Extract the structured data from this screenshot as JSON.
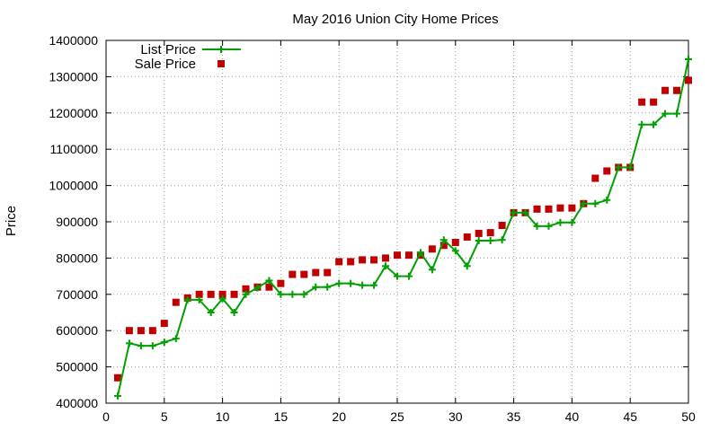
{
  "chart_data": {
    "type": "line",
    "title": "May 2016 Union City Home Prices",
    "xlabel": "",
    "ylabel": "Price",
    "xlim": [
      0,
      50
    ],
    "ylim": [
      400000,
      1400000
    ],
    "xticks": [
      0,
      5,
      10,
      15,
      20,
      25,
      30,
      35,
      40,
      45,
      50
    ],
    "yticks": [
      400000,
      500000,
      600000,
      700000,
      800000,
      900000,
      1000000,
      1100000,
      1200000,
      1300000,
      1400000
    ],
    "grid": true,
    "legend": "top-left",
    "x": [
      1,
      2,
      3,
      4,
      5,
      6,
      7,
      8,
      9,
      10,
      11,
      12,
      13,
      14,
      15,
      16,
      17,
      18,
      19,
      20,
      21,
      22,
      23,
      24,
      25,
      26,
      27,
      28,
      29,
      30,
      31,
      32,
      33,
      34,
      35,
      36,
      37,
      38,
      39,
      40,
      41,
      42,
      43,
      44,
      45,
      46,
      47,
      48,
      49,
      50
    ],
    "series": [
      {
        "name": "List Price",
        "style": "line-points",
        "color": "#00a000",
        "values": [
          420000,
          565000,
          558000,
          558000,
          568000,
          578000,
          685000,
          685000,
          650000,
          688000,
          650000,
          700000,
          718000,
          738000,
          700000,
          700000,
          700000,
          720000,
          720000,
          730000,
          730000,
          725000,
          725000,
          778000,
          750000,
          750000,
          815000,
          768000,
          850000,
          820000,
          778000,
          848000,
          848000,
          850000,
          925000,
          925000,
          888000,
          888000,
          898000,
          898000,
          950000,
          950000,
          960000,
          1050000,
          1050000,
          1168000,
          1168000,
          1198000,
          1198000,
          1348000
        ]
      },
      {
        "name": "Sale Price",
        "style": "points",
        "color": "#c00000",
        "values": [
          470000,
          600000,
          600000,
          600000,
          620000,
          678000,
          690000,
          700000,
          700000,
          700000,
          700000,
          715000,
          720000,
          720000,
          730000,
          755000,
          755000,
          760000,
          760000,
          790000,
          790000,
          795000,
          795000,
          800000,
          808000,
          808000,
          808000,
          825000,
          835000,
          843000,
          858000,
          868000,
          870000,
          890000,
          925000,
          925000,
          935000,
          935000,
          938000,
          938000,
          950000,
          1020000,
          1040000,
          1050000,
          1050000,
          1230000,
          1230000,
          1262000,
          1262000,
          1290000
        ]
      }
    ]
  }
}
